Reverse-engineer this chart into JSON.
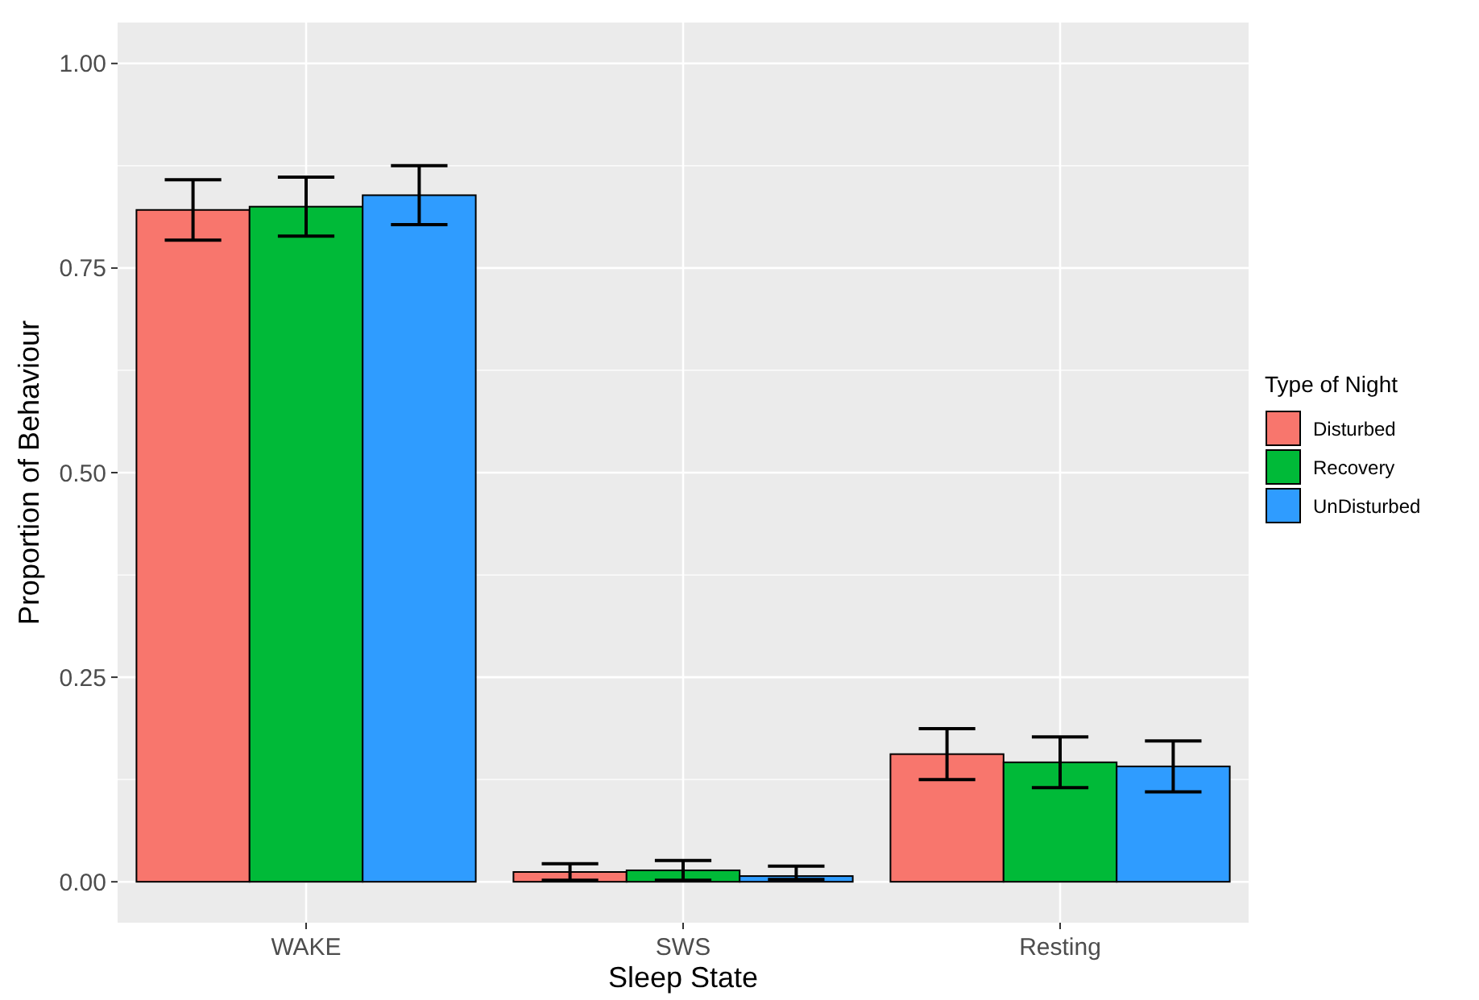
{
  "chart_data": {
    "type": "bar",
    "xlabel": "Sleep State",
    "ylabel": "Proportion of Behaviour",
    "legend_title": "Type of Night",
    "categories": [
      "WAKE",
      "SWS",
      "Resting"
    ],
    "series": [
      {
        "name": "Disturbed",
        "color": "#f8766d",
        "values": [
          0.821,
          0.012,
          0.156
        ],
        "errors": [
          0.037,
          0.01,
          0.031
        ]
      },
      {
        "name": "Recovery",
        "color": "#00ba38",
        "values": [
          0.825,
          0.014,
          0.146
        ],
        "errors": [
          0.036,
          0.012,
          0.031
        ]
      },
      {
        "name": "UnDisturbed",
        "color": "#2f9cff",
        "values": [
          0.839,
          0.007,
          0.141
        ],
        "errors": [
          0.036,
          [
            0.003,
            0.019
          ],
          0.031
        ]
      }
    ],
    "ylim": [
      -0.05,
      1.05
    ],
    "yticks": [
      {
        "value": 0,
        "label": "0.00"
      },
      {
        "value": 0.25,
        "label": "0.25"
      },
      {
        "value": 0.5,
        "label": "0.50"
      },
      {
        "value": 0.75,
        "label": "0.75"
      },
      {
        "value": 1,
        "label": "1.00"
      }
    ],
    "grid": true,
    "legend": "right"
  }
}
